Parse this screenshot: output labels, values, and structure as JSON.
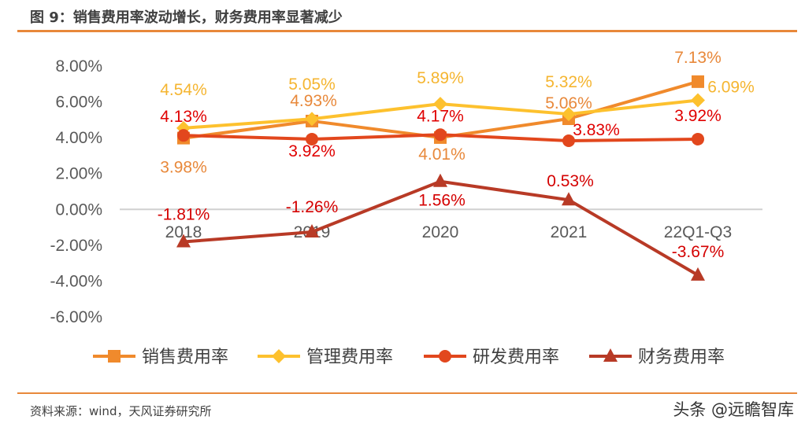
{
  "title": "图 9：销售费用率波动增长，财务费用率显著减少",
  "source": "资料来源：wind，天风证券研究所",
  "watermark": "头条 @远瞻智库",
  "chart_data": {
    "type": "line",
    "categories": [
      "2018",
      "2019",
      "2020",
      "2021",
      "22Q1-Q3"
    ],
    "ylim": [
      -6,
      8
    ],
    "yticks": [
      "-6.00%",
      "-4.00%",
      "-2.00%",
      "0.00%",
      "2.00%",
      "4.00%",
      "6.00%",
      "8.00%"
    ],
    "ytick_values": [
      -6,
      -4,
      -2,
      0,
      2,
      4,
      6,
      8
    ],
    "grid": "zero line only",
    "legend_position": "bottom",
    "series": [
      {
        "name": "销售费用率",
        "marker": "square",
        "color": "#F08A2C",
        "label_color": "#E8883A",
        "values": [
          3.98,
          4.93,
          4.01,
          5.06,
          7.13
        ],
        "labels": [
          "3.98%",
          "4.93%",
          "4.01%",
          "5.06%",
          "7.13%"
        ]
      },
      {
        "name": "管理费用率",
        "marker": "diamond",
        "color": "#FDC12E",
        "label_color": "#F5B530",
        "values": [
          4.54,
          5.05,
          5.89,
          5.32,
          6.09
        ],
        "labels": [
          "4.54%",
          "5.05%",
          "5.89%",
          "5.32%",
          "6.09%"
        ]
      },
      {
        "name": "研发费用率",
        "marker": "circle",
        "color": "#E2471D",
        "label_color": "#E00000",
        "values": [
          4.13,
          3.92,
          4.17,
          3.83,
          3.92
        ],
        "labels": [
          "4.13%",
          "3.92%",
          "4.17%",
          "3.83%",
          "3.92%"
        ]
      },
      {
        "name": "财务费用率",
        "marker": "triangle",
        "color": "#B83A26",
        "label_color": "#D40000",
        "values": [
          -1.81,
          -1.26,
          1.56,
          0.53,
          -3.67
        ],
        "labels": [
          "-1.81%",
          "-1.26%",
          "1.56%",
          "0.53%",
          "-3.67%"
        ]
      }
    ]
  }
}
